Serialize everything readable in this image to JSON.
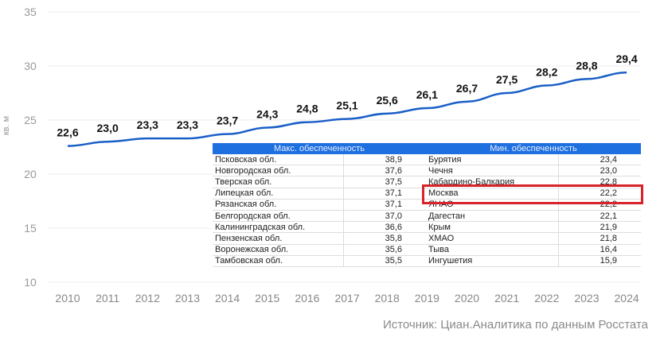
{
  "chart_data": {
    "type": "line",
    "ylabel": "кв. м",
    "ylim": [
      10,
      35
    ],
    "yticks": [
      10,
      15,
      20,
      25,
      30,
      35
    ],
    "x": [
      2010,
      2011,
      2012,
      2013,
      2014,
      2015,
      2016,
      2017,
      2018,
      2019,
      2020,
      2021,
      2022,
      2023,
      2024
    ],
    "values": [
      22.6,
      23.0,
      23.3,
      23.3,
      23.7,
      24.3,
      24.8,
      25.1,
      25.6,
      26.1,
      26.7,
      27.5,
      28.2,
      28.8,
      29.4
    ],
    "labels": [
      "22,6",
      "23,0",
      "23,3",
      "23,3",
      "23,7",
      "24,3",
      "24,8",
      "25,1",
      "25,6",
      "26,1",
      "26,7",
      "27,5",
      "28,2",
      "28,8",
      "29,4"
    ],
    "line_color": "#1a5fc8",
    "grid": "horizontal"
  },
  "table_max": {
    "header": "Макс. обеспеченность",
    "rows": [
      [
        "Псковская обл.",
        "38,9"
      ],
      [
        "Новгородская обл.",
        "37,6"
      ],
      [
        "Тверская обл.",
        "37,5"
      ],
      [
        "Липецкая обл.",
        "37,1"
      ],
      [
        "Рязанская обл.",
        "37,1"
      ],
      [
        "Белгородская обл.",
        "37,0"
      ],
      [
        "Калининградская обл.",
        "36,6"
      ],
      [
        "Пензенская обл.",
        "35,8"
      ],
      [
        "Воронежская обл.",
        "35,6"
      ],
      [
        "Тамбовская обл.",
        "35,5"
      ]
    ]
  },
  "table_min": {
    "header": "Мин. обеспеченность",
    "highlighted": "Москва",
    "highlight_color": "#d8232a",
    "rows": [
      [
        "Бурятия",
        "23,4"
      ],
      [
        "Чечня",
        "23,0"
      ],
      [
        "Кабардино-Балкария",
        "22,8"
      ],
      [
        "Москва",
        "22,2"
      ],
      [
        "ЯНАО",
        "22,2"
      ],
      [
        "Дагестан",
        "22,1"
      ],
      [
        "Крым",
        "21,9"
      ],
      [
        "ХМАО",
        "21,8"
      ],
      [
        "Тыва",
        "16,4"
      ],
      [
        "Ингушетия",
        "15,9"
      ]
    ]
  },
  "source": "Источник: Циан.Аналитика по данным Росстата"
}
